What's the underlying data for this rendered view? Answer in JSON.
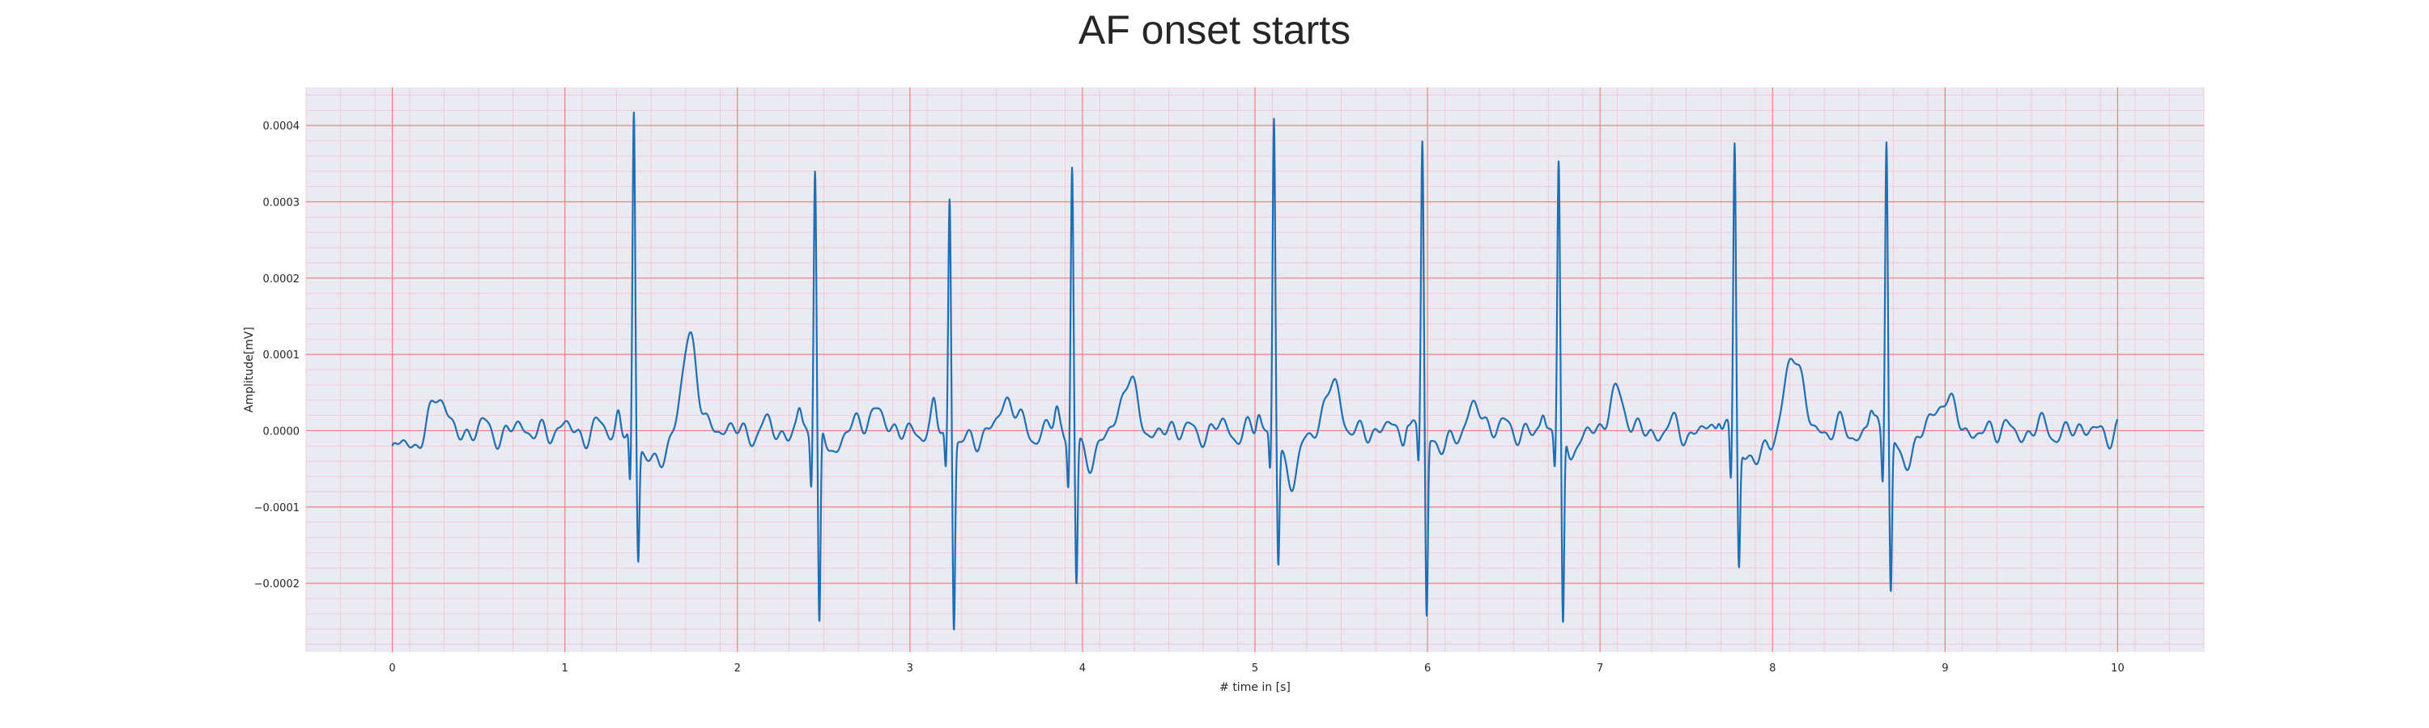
{
  "chart_data": {
    "type": "line",
    "title": "AF onset starts",
    "xlabel": "# time in [s]",
    "ylabel": "Amplitude[mV]",
    "xlim": [
      -0.5,
      10.5
    ],
    "ylim": [
      -0.00029,
      0.00045
    ],
    "xticks": [
      0,
      1,
      2,
      3,
      4,
      5,
      6,
      7,
      8,
      9,
      10
    ],
    "xtick_labels": [
      "0",
      "1",
      "2",
      "3",
      "4",
      "5",
      "6",
      "7",
      "8",
      "9",
      "10"
    ],
    "yticks": [
      -0.0002,
      -0.0001,
      0.0,
      0.0001,
      0.0002,
      0.0003,
      0.0004
    ],
    "ytick_labels": [
      "−0.0002",
      "−0.0001",
      "0.0000",
      "0.0001",
      "0.0002",
      "0.0003",
      "0.0004"
    ],
    "grid": "major and minor (ECG paper style)",
    "colors": {
      "background": "#eaeaf2",
      "major_grid": "#f08080",
      "minor_grid": "#f3c3cb",
      "line": "#1f6fb2"
    },
    "series": [
      {
        "x_start": 0,
        "x_end": 10,
        "baseline_start": -3.5e-05,
        "beats": [
          {
            "t": 1.4,
            "r": 0.000418,
            "q": -7.5e-05,
            "s": -0.000155,
            "t_wave": 6e-05,
            "post": -5e-05
          },
          {
            "t": 2.45,
            "r": 0.000345,
            "q": -6.5e-05,
            "s": -0.000265,
            "t_wave": 3e-05,
            "post": -2e-05
          },
          {
            "t": 3.23,
            "r": 0.000315,
            "q": -5e-05,
            "s": -0.000245,
            "t_wave": 4e-05,
            "post": -2e-05
          },
          {
            "t": 3.94,
            "r": 0.000353,
            "q": -6.5e-05,
            "s": -0.000195,
            "t_wave": 3e-05,
            "post": -4e-05
          },
          {
            "t": 5.11,
            "r": 0.000412,
            "q": -5.5e-05,
            "s": -0.00016,
            "t_wave": 6e-05,
            "post": -6e-05
          },
          {
            "t": 5.97,
            "r": 0.000375,
            "q": -5e-05,
            "s": -0.000242,
            "t_wave": 3e-05,
            "post": -2e-05
          },
          {
            "t": 6.76,
            "r": 0.000345,
            "q": -5e-05,
            "s": -0.000262,
            "t_wave": 5e-05,
            "post": -2e-05
          },
          {
            "t": 7.78,
            "r": 0.00039,
            "q": -7e-05,
            "s": -0.000158,
            "t_wave": 6e-05,
            "post": -5e-05
          },
          {
            "t": 8.66,
            "r": 0.000397,
            "q": -6e-05,
            "s": -0.000203,
            "t_wave": 5e-05,
            "post": -4e-05
          }
        ],
        "extra_waves": [
          {
            "t": 0.27,
            "a": 5e-05
          },
          {
            "t": 1.73,
            "a": 6e-05
          },
          {
            "t": 4.25,
            "a": 4e-05
          },
          {
            "t": 8.15,
            "a": 5e-05
          }
        ]
      }
    ]
  }
}
